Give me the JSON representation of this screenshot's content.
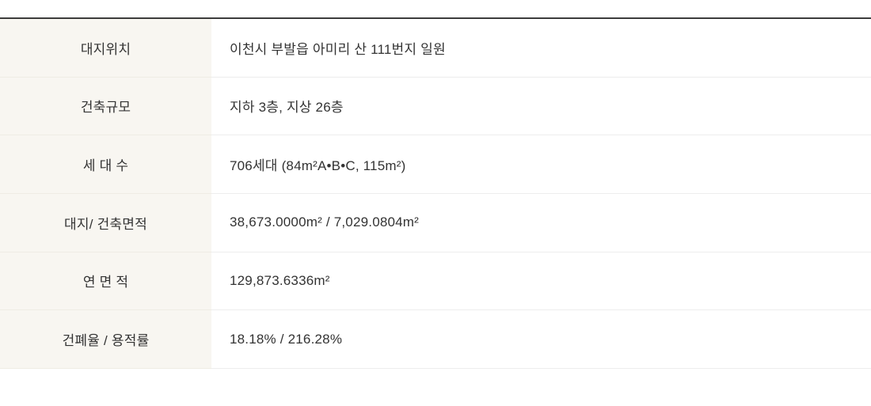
{
  "colors": {
    "top_rule": "#3c3c3c",
    "label_column_bg": "#f8f6f1",
    "value_column_bg": "#ffffff",
    "row_divider": "#ededed",
    "text": "#333333"
  },
  "table": {
    "rows": [
      {
        "label": "대지위치",
        "value": "이천시 부발읍 아미리 산 111번지 일원"
      },
      {
        "label": "건축규모",
        "value": "지하 3층, 지상 26층"
      },
      {
        "label": "세 대 수",
        "value": "706세대 (84m²A•B•C, 115m²)"
      },
      {
        "label": "대지/ 건축면적",
        "value": "38,673.0000m² / 7,029.0804m²"
      },
      {
        "label": "연 면 적",
        "value": "129,873.6336m²"
      },
      {
        "label": "건폐율 / 용적률",
        "value": "18.18% / 216.28%"
      }
    ]
  }
}
